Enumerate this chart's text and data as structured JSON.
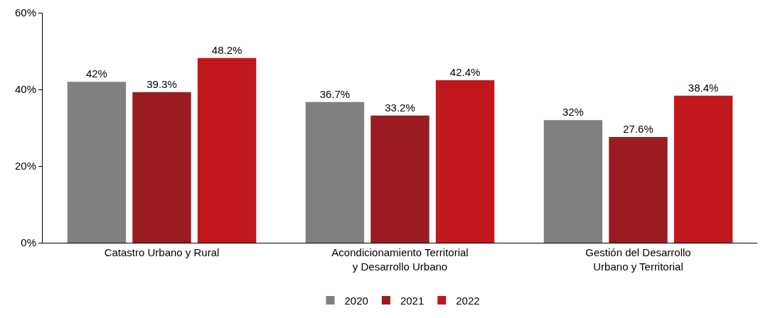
{
  "chart_data": {
    "type": "bar",
    "categories": [
      "Catastro Urbano y Rural",
      "Acondicionamiento Territorial\ny Desarrollo Urbano",
      "Gestión del Desarrollo\nUrbano y Territorial"
    ],
    "series": [
      {
        "name": "2020",
        "color": "#808080",
        "values": [
          42,
          36.7,
          32
        ],
        "value_labels": [
          "42%",
          "36.7%",
          "32%"
        ]
      },
      {
        "name": "2021",
        "color": "#9a1c20",
        "values": [
          39.3,
          33.2,
          27.6
        ],
        "value_labels": [
          "39.3%",
          "33.2%",
          "27.6%"
        ]
      },
      {
        "name": "2022",
        "color": "#c0181d",
        "values": [
          48.2,
          42.4,
          38.4
        ],
        "value_labels": [
          "48.2%",
          "42.4%",
          "38.4%"
        ]
      }
    ],
    "ylim": [
      0,
      60
    ],
    "yticks": [
      {
        "value": 0,
        "label": "0%"
      },
      {
        "value": 20,
        "label": "20%"
      },
      {
        "value": 40,
        "label": "40%"
      },
      {
        "value": 60,
        "label": "60%"
      }
    ],
    "legend": "bottom"
  }
}
